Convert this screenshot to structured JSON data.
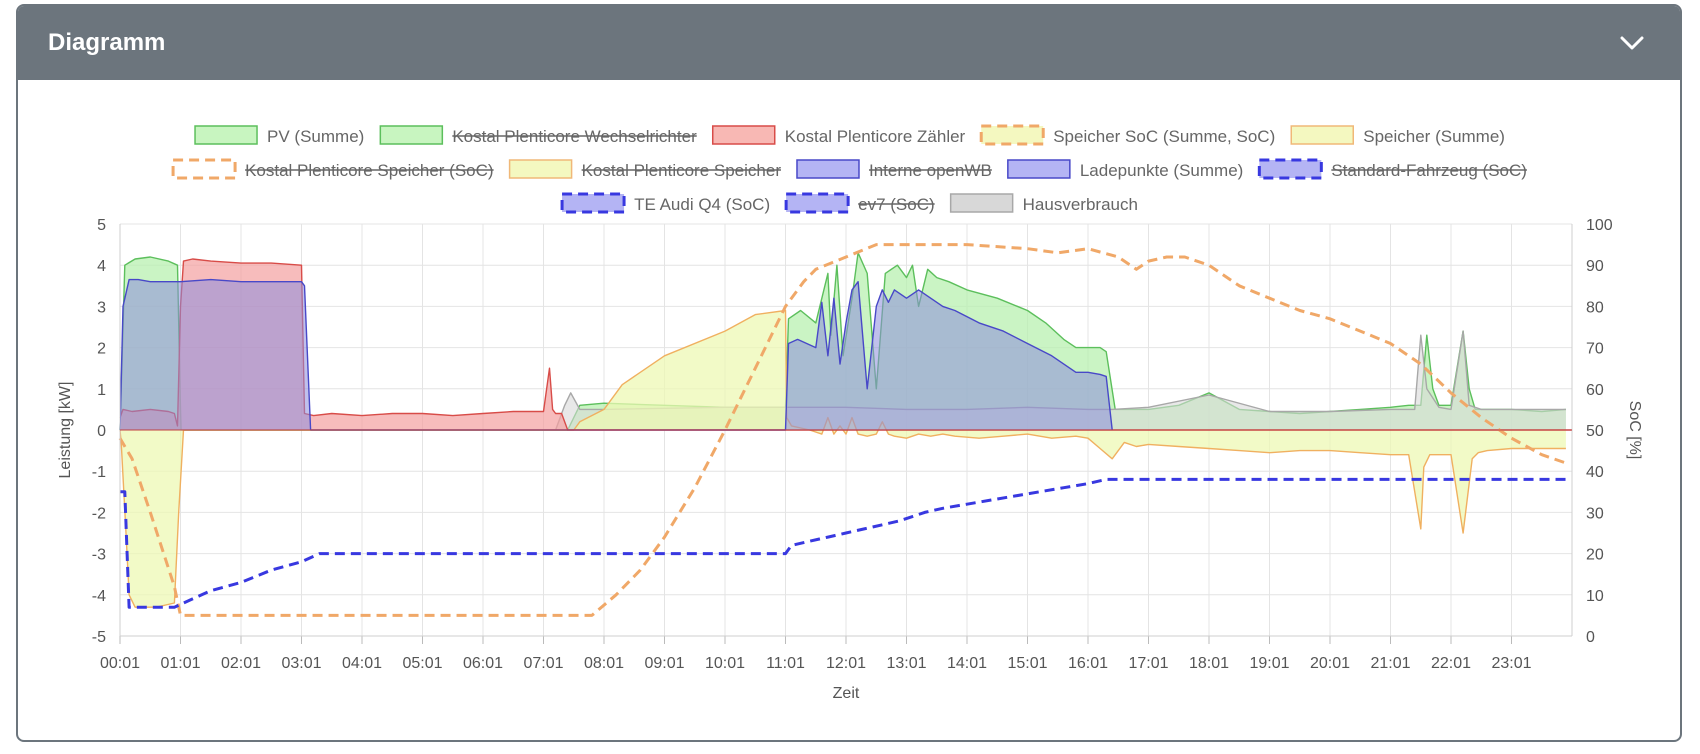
{
  "card": {
    "title": "Diagramm",
    "collapse_icon": "chevron-down-icon"
  },
  "chart_data": {
    "type": "line",
    "xlabel": "Zeit",
    "ylabel_left": "Leistung [kW]",
    "ylabel_right": "SoC [%]",
    "ylim_left": [
      -5,
      5
    ],
    "ylim_right": [
      0,
      100
    ],
    "x_ticks": [
      "00:01",
      "01:01",
      "02:01",
      "03:01",
      "04:01",
      "05:01",
      "06:01",
      "07:01",
      "08:01",
      "09:01",
      "10:01",
      "11:01",
      "12:01",
      "13:01",
      "14:01",
      "15:01",
      "16:01",
      "17:01",
      "18:01",
      "19:01",
      "20:01",
      "21:01",
      "22:01",
      "23:01"
    ],
    "y_ticks_left": [
      5,
      4,
      3,
      2,
      1,
      0,
      -1,
      -2,
      -3,
      -4,
      -5
    ],
    "y_ticks_right": [
      100,
      90,
      80,
      70,
      60,
      50,
      40,
      30,
      20,
      10,
      0
    ],
    "grid": true,
    "legend_position": "top-center",
    "legend": [
      {
        "label": "PV (Summe)",
        "fill": "#c8f5c0",
        "stroke": "#5cbf5c",
        "dashed": false,
        "hidden": false
      },
      {
        "label": "Kostal Plenticore Wechselrichter",
        "fill": "#c8f5c0",
        "stroke": "#5cbf5c",
        "dashed": false,
        "hidden": true
      },
      {
        "label": "Kostal Plenticore Zähler",
        "fill": "#f8b8b4",
        "stroke": "#d84c48",
        "dashed": false,
        "hidden": false
      },
      {
        "label": "Speicher SoC (Summe, SoC)",
        "fill": "#f4f8c0",
        "stroke": "#f0a868",
        "dashed": true,
        "hidden": false
      },
      {
        "label": "Speicher (Summe)",
        "fill": "#f4f8c0",
        "stroke": "#f0b878",
        "dashed": false,
        "hidden": false
      },
      {
        "label": "Kostal Plenticore Speicher (SoC)",
        "fill": "#ffffff",
        "stroke": "#f0a868",
        "dashed": true,
        "hidden": true
      },
      {
        "label": "Kostal Plenticore Speicher",
        "fill": "#f4f8c0",
        "stroke": "#f0b878",
        "dashed": false,
        "hidden": true
      },
      {
        "label": "Interne openWB",
        "fill": "#b4b4f4",
        "stroke": "#4848c8",
        "dashed": false,
        "hidden": true
      },
      {
        "label": "Ladepunkte (Summe)",
        "fill": "#b4b4f4",
        "stroke": "#4848c8",
        "dashed": false,
        "hidden": false
      },
      {
        "label": "Standard-Fahrzeug (SoC)",
        "fill": "#b4b4f4",
        "stroke": "#3838e0",
        "dashed": true,
        "hidden": true
      },
      {
        "label": "TE Audi Q4 (SoC)",
        "fill": "#b4b4f4",
        "stroke": "#3838e0",
        "dashed": true,
        "hidden": false
      },
      {
        "label": "ev7 (SoC)",
        "fill": "#b4b4f4",
        "stroke": "#3838e0",
        "dashed": true,
        "hidden": true
      },
      {
        "label": "Hausverbrauch",
        "fill": "#d8d8d8",
        "stroke": "#a8a8a8",
        "dashed": false,
        "hidden": false
      }
    ],
    "series": [
      {
        "key": "pv",
        "name": "PV (Summe)",
        "axis": "left",
        "fill": "#b8f0b0",
        "fill_opacity": 0.75,
        "stroke": "#5cbf5c",
        "x": [
          0,
          0.08,
          0.25,
          0.5,
          0.8,
          0.95,
          1.0,
          1.01,
          7.4,
          7.6,
          8.0,
          9.0,
          10.0,
          11.0,
          11.05,
          11.25,
          11.5,
          11.7,
          11.75,
          11.85,
          11.95,
          12.1,
          12.2,
          12.35,
          12.5,
          12.65,
          12.85,
          13.0,
          13.1,
          13.2,
          13.35,
          13.5,
          13.7,
          14.0,
          14.5,
          15.0,
          15.3,
          15.6,
          15.8,
          16.2,
          16.3,
          16.45,
          17.0,
          17.5,
          18.0,
          18.5,
          19.0,
          19.5,
          20.0,
          20.5,
          21.0,
          21.3,
          21.5,
          21.6,
          21.7,
          21.8,
          22.0,
          22.2,
          22.3,
          22.4,
          22.5,
          23.0,
          23.5,
          23.9
        ],
        "y": [
          0,
          4.0,
          4.15,
          4.2,
          4.1,
          4.0,
          0.5,
          0,
          0,
          0.6,
          0.65,
          0.6,
          0.55,
          0.55,
          2.7,
          2.9,
          2.6,
          3.8,
          2.3,
          4.0,
          1.8,
          3.2,
          4.3,
          3.8,
          1.0,
          3.8,
          4.0,
          3.7,
          4.0,
          3.0,
          3.9,
          3.7,
          3.6,
          3.4,
          3.2,
          2.9,
          2.6,
          2.2,
          2.0,
          2.0,
          1.9,
          0.5,
          0.5,
          0.6,
          0.9,
          0.5,
          0.45,
          0.4,
          0.45,
          0.5,
          0.55,
          0.6,
          0.6,
          2.3,
          1.0,
          0.6,
          0.6,
          2.4,
          1.0,
          0.5,
          0.5,
          0.5,
          0.45,
          0.5
        ]
      },
      {
        "key": "haus",
        "name": "Hausverbrauch",
        "axis": "left",
        "fill": "#d8d8d8",
        "fill_opacity": 0.6,
        "stroke": "#a8a8a8",
        "x": [
          7.2,
          7.35,
          7.45,
          7.6,
          8.0,
          10.0,
          11.0,
          12.0,
          13.0,
          14.0,
          15.0,
          16.0,
          16.4,
          17.0,
          18.0,
          19.0,
          20.0,
          21.0,
          21.4,
          21.5,
          21.6,
          21.8,
          22.0,
          22.2,
          22.3,
          22.5,
          23.0,
          23.9
        ],
        "y": [
          0,
          0.6,
          0.9,
          0.5,
          0.5,
          0.55,
          0.55,
          0.55,
          0.5,
          0.5,
          0.55,
          0.5,
          0.5,
          0.55,
          0.85,
          0.45,
          0.45,
          0.5,
          0.5,
          2.3,
          1.0,
          0.55,
          0.5,
          2.4,
          0.6,
          0.5,
          0.5,
          0.5
        ]
      },
      {
        "key": "speicher",
        "name": "Speicher (Summe)",
        "axis": "left",
        "fill": "#eef8b4",
        "fill_opacity": 0.75,
        "stroke": "#f0b060",
        "x": [
          0,
          0.02,
          0.1,
          0.15,
          0.25,
          0.6,
          0.9,
          0.97,
          1.05,
          1.1,
          7.5,
          7.6,
          8.0,
          8.3,
          9.0,
          10.0,
          10.5,
          11.0,
          11.02,
          11.1,
          11.4,
          11.6,
          11.7,
          11.8,
          11.9,
          12.0,
          12.1,
          12.2,
          12.35,
          12.5,
          12.6,
          12.7,
          12.8,
          13.0,
          13.2,
          13.4,
          13.6,
          13.8,
          14.2,
          14.6,
          15.0,
          15.4,
          15.8,
          16.0,
          16.2,
          16.4,
          16.6,
          16.8,
          17.0,
          17.5,
          18.0,
          18.5,
          19.0,
          19.5,
          20.0,
          20.5,
          21.0,
          21.3,
          21.5,
          21.55,
          21.65,
          21.8,
          22.0,
          22.2,
          22.35,
          22.45,
          22.6,
          23.0,
          23.5,
          23.9
        ],
        "y": [
          0,
          -0.3,
          -2.5,
          -4.0,
          -4.3,
          -4.3,
          -4.2,
          -2.0,
          0,
          0,
          0,
          0.2,
          0.5,
          1.1,
          1.8,
          2.4,
          2.8,
          2.9,
          0.3,
          0.1,
          0.0,
          -0.1,
          0.3,
          -0.1,
          0.1,
          -0.1,
          0.3,
          -0.1,
          -0.15,
          -0.1,
          0.2,
          -0.1,
          -0.15,
          -0.2,
          -0.1,
          -0.15,
          -0.1,
          -0.15,
          -0.2,
          -0.15,
          -0.1,
          -0.2,
          -0.15,
          -0.2,
          -0.45,
          -0.7,
          -0.3,
          -0.4,
          -0.35,
          -0.4,
          -0.45,
          -0.5,
          -0.55,
          -0.5,
          -0.5,
          -0.55,
          -0.6,
          -0.6,
          -2.4,
          -0.9,
          -0.6,
          -0.6,
          -0.6,
          -2.5,
          -0.7,
          -0.55,
          -0.5,
          -0.45,
          -0.45,
          -0.45
        ]
      },
      {
        "key": "zaehler",
        "name": "Kostal Plenticore Zähler",
        "axis": "left",
        "fill": "#f4a0a0",
        "fill_opacity": 0.7,
        "stroke": "#d84c48",
        "x": [
          0,
          0.05,
          0.2,
          0.5,
          0.8,
          0.9,
          0.95,
          1.0,
          1.05,
          1.2,
          1.5,
          2.0,
          2.5,
          3.0,
          3.05,
          3.2,
          3.5,
          4.0,
          4.5,
          5.0,
          5.5,
          6.0,
          6.5,
          7.0,
          7.1,
          7.15,
          7.2,
          7.3,
          7.4,
          7.5,
          7.6,
          24
        ],
        "y": [
          0.3,
          0.5,
          0.45,
          0.5,
          0.45,
          0.4,
          0.1,
          3.0,
          4.1,
          4.15,
          4.1,
          4.05,
          4.05,
          4.0,
          0.4,
          0.35,
          0.4,
          0.35,
          0.4,
          0.4,
          0.35,
          0.4,
          0.45,
          0.45,
          1.5,
          0.5,
          0.4,
          0.4,
          0.0,
          0,
          0,
          0
        ]
      },
      {
        "key": "ladepunkte",
        "name": "Ladepunkte (Summe)",
        "axis": "left",
        "fill": "#8c8cdc",
        "fill_opacity": 0.55,
        "stroke": "#4848c8",
        "x": [
          0,
          0.05,
          0.15,
          0.3,
          0.5,
          0.8,
          1.0,
          1.5,
          2.0,
          2.5,
          3.0,
          3.05,
          3.15,
          11.0,
          11.05,
          11.2,
          11.5,
          11.6,
          11.7,
          11.8,
          11.9,
          12.0,
          12.1,
          12.2,
          12.35,
          12.5,
          12.6,
          12.7,
          12.8,
          13.0,
          13.2,
          13.4,
          13.6,
          13.8,
          14.2,
          14.6,
          15.0,
          15.4,
          15.8,
          16.0,
          16.2,
          16.3,
          16.4
        ],
        "y": [
          0,
          3.0,
          3.65,
          3.65,
          3.6,
          3.6,
          3.6,
          3.65,
          3.6,
          3.6,
          3.6,
          3.5,
          0,
          0,
          2.1,
          2.2,
          2.0,
          3.1,
          1.8,
          3.2,
          1.6,
          2.6,
          3.4,
          3.6,
          1.0,
          3.0,
          3.4,
          3.1,
          3.4,
          3.2,
          3.4,
          3.2,
          3.0,
          2.9,
          2.6,
          2.4,
          2.1,
          1.8,
          1.4,
          1.4,
          1.35,
          1.3,
          0
        ]
      },
      {
        "key": "speicher_soc",
        "name": "Speicher SoC (Summe, SoC)",
        "axis": "right",
        "fill": "none",
        "fill_opacity": 0,
        "stroke": "#f0a868",
        "dashed": true,
        "x": [
          0,
          0.2,
          0.5,
          0.9,
          1.0,
          1.5,
          3.0,
          5.0,
          7.0,
          7.8,
          8.2,
          8.6,
          9.0,
          9.5,
          10.0,
          10.5,
          11.0,
          11.3,
          11.5,
          12.0,
          12.5,
          13.0,
          13.5,
          14.0,
          15.0,
          15.5,
          16.0,
          16.5,
          16.8,
          17.0,
          17.3,
          17.6,
          18.0,
          18.5,
          19.0,
          19.5,
          20.0,
          20.5,
          21.0,
          21.5,
          22.0,
          22.5,
          23.0,
          23.5,
          23.9
        ],
        "y": [
          48,
          43,
          30,
          12,
          5,
          5,
          5,
          5,
          5,
          5,
          10,
          16,
          24,
          36,
          50,
          65,
          80,
          86,
          89,
          92,
          95,
          95,
          95,
          95,
          94,
          93,
          94,
          92,
          89,
          91,
          92,
          92,
          90,
          85,
          82,
          79,
          77,
          74,
          71,
          66,
          59,
          53,
          48,
          44,
          42
        ]
      },
      {
        "key": "audi_soc",
        "name": "TE Audi Q4 (SoC)",
        "axis": "right",
        "fill": "none",
        "fill_opacity": 0,
        "stroke": "#3838e0",
        "dashed": true,
        "x": [
          0,
          0.08,
          0.15,
          0.3,
          0.6,
          0.9,
          1.2,
          1.5,
          2.0,
          2.5,
          3.0,
          3.3,
          6.0,
          9.0,
          11.0,
          11.1,
          11.4,
          11.7,
          12.0,
          12.3,
          12.6,
          12.9,
          13.3,
          13.6,
          14.0,
          14.4,
          14.8,
          15.2,
          15.6,
          16.0,
          16.3,
          17.0,
          20.0,
          23.9
        ],
        "y": [
          35,
          35,
          7,
          7,
          7,
          7,
          9,
          11,
          13,
          16,
          18,
          20,
          20,
          20,
          20,
          22,
          23,
          24,
          25,
          26,
          27,
          28,
          30,
          31,
          32,
          33,
          34,
          35,
          36,
          37,
          38,
          38,
          38,
          38
        ]
      }
    ]
  }
}
